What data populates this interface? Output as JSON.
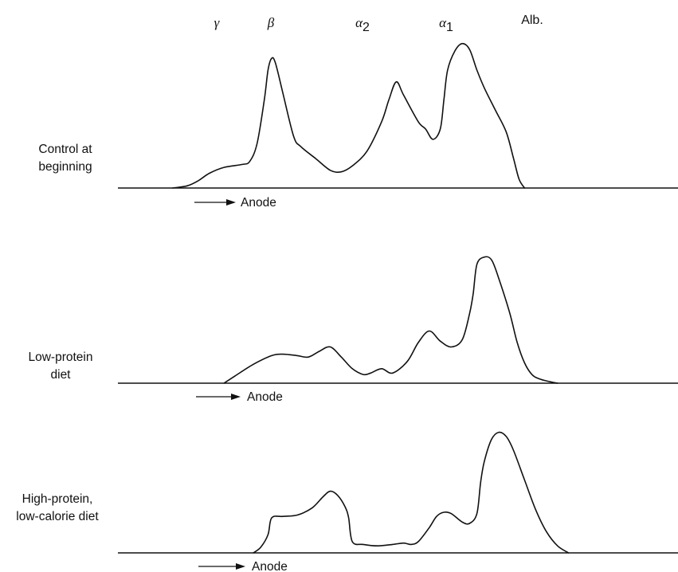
{
  "chart_data": {
    "type": "line",
    "x_axis_labels": [
      {
        "label": "γ",
        "x": 0.0
      },
      {
        "label": "β",
        "x": 8.5
      },
      {
        "label": "α",
        "sub": "2",
        "x": 30.5
      },
      {
        "label": "α",
        "sub": "1",
        "x": 52.0
      },
      {
        "label": "Alb.",
        "x": 68.5
      }
    ],
    "direction_label": "Anode",
    "panels": [
      {
        "label": [
          "Control at",
          "beginning"
        ],
        "points": [
          [
            -12,
            0
          ],
          [
            -8,
            1.5
          ],
          [
            -5,
            5
          ],
          [
            -2,
            10
          ],
          [
            2,
            14
          ],
          [
            7,
            16
          ],
          [
            9,
            18
          ],
          [
            11,
            30
          ],
          [
            13,
            60
          ],
          [
            14,
            80
          ],
          [
            15,
            88
          ],
          [
            16,
            85
          ],
          [
            18,
            65
          ],
          [
            21,
            35
          ],
          [
            23,
            28
          ],
          [
            27,
            20
          ],
          [
            31,
            12
          ],
          [
            34,
            11
          ],
          [
            37,
            15
          ],
          [
            41,
            25
          ],
          [
            45,
            45
          ],
          [
            47,
            60
          ],
          [
            49,
            72
          ],
          [
            51,
            63
          ],
          [
            55,
            45
          ],
          [
            57,
            40
          ],
          [
            59,
            33
          ],
          [
            61,
            40
          ],
          [
            62,
            60
          ],
          [
            63,
            80
          ],
          [
            65,
            93
          ],
          [
            67,
            98
          ],
          [
            69,
            94
          ],
          [
            71,
            80
          ],
          [
            73,
            68
          ],
          [
            76,
            53
          ],
          [
            79,
            38
          ],
          [
            81,
            20
          ],
          [
            82.5,
            6
          ],
          [
            84,
            0
          ]
        ]
      },
      {
        "label": [
          "Low-protein",
          "diet"
        ],
        "points": [
          [
            2,
            0
          ],
          [
            5,
            5
          ],
          [
            10,
            13
          ],
          [
            15,
            19
          ],
          [
            18,
            20
          ],
          [
            22,
            19
          ],
          [
            25,
            18
          ],
          [
            28,
            22
          ],
          [
            31,
            25
          ],
          [
            34,
            18
          ],
          [
            37,
            10
          ],
          [
            40,
            6
          ],
          [
            42,
            7
          ],
          [
            45,
            10
          ],
          [
            48,
            7
          ],
          [
            52,
            15
          ],
          [
            55,
            28
          ],
          [
            58,
            36
          ],
          [
            61,
            29
          ],
          [
            64,
            25
          ],
          [
            67,
            30
          ],
          [
            69,
            48
          ],
          [
            70,
            62
          ],
          [
            71,
            82
          ],
          [
            73,
            87
          ],
          [
            75,
            85
          ],
          [
            77,
            72
          ],
          [
            80,
            48
          ],
          [
            82,
            28
          ],
          [
            84,
            14
          ],
          [
            86,
            6
          ],
          [
            88,
            3
          ],
          [
            91,
            1
          ],
          [
            93,
            0
          ]
        ]
      },
      {
        "label": [
          "High-protein,",
          "low-calorie diet"
        ],
        "points": [
          [
            10,
            0
          ],
          [
            12,
            4
          ],
          [
            14,
            13
          ],
          [
            15,
            25
          ],
          [
            18,
            26
          ],
          [
            22,
            27
          ],
          [
            26,
            32
          ],
          [
            29,
            40
          ],
          [
            31,
            44
          ],
          [
            33,
            41
          ],
          [
            35,
            33
          ],
          [
            36,
            25
          ],
          [
            37,
            8
          ],
          [
            40,
            6
          ],
          [
            44,
            5
          ],
          [
            48,
            6
          ],
          [
            51,
            7
          ],
          [
            53,
            6
          ],
          [
            55,
            8
          ],
          [
            58,
            18
          ],
          [
            60,
            26
          ],
          [
            62,
            29
          ],
          [
            64,
            28
          ],
          [
            67,
            22
          ],
          [
            69,
            21
          ],
          [
            71,
            28
          ],
          [
            72,
            50
          ],
          [
            73,
            65
          ],
          [
            75,
            81
          ],
          [
            77,
            86
          ],
          [
            79,
            83
          ],
          [
            81,
            73
          ],
          [
            84,
            52
          ],
          [
            87,
            31
          ],
          [
            90,
            15
          ],
          [
            93,
            5
          ],
          [
            96,
            0
          ]
        ]
      }
    ]
  }
}
